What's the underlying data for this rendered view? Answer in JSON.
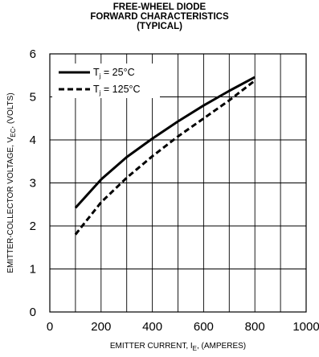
{
  "chart_data": {
    "type": "line",
    "title_lines": [
      "FREE-WHEEL DIODE",
      "FORWARD CHARACTERISTICS",
      "(TYPICAL)"
    ],
    "xlabel": {
      "main": "EMITTER CURRENT, I",
      "sub": "E",
      "rest": ", (AMPERES)"
    },
    "ylabel": {
      "main": "EMITTER-COLLECTOR VOLTAGE, V",
      "sub": "EC",
      "rest": ", (VOLTS)"
    },
    "xlim": [
      0,
      1000
    ],
    "ylim": [
      0,
      6
    ],
    "xticks": [
      "0",
      "200",
      "400",
      "600",
      "800",
      "1000"
    ],
    "yticks": [
      "0",
      "1",
      "2",
      "3",
      "4",
      "5",
      "6"
    ],
    "grid": true,
    "legend_position": "top-left",
    "series": [
      {
        "name": "T j = 25°C",
        "label_main": "T",
        "label_sub": "j",
        "label_rest": " = 25°C",
        "style": "solid",
        "color": "#000000",
        "x": [
          100,
          200,
          300,
          400,
          500,
          600,
          700,
          800
        ],
        "y": [
          2.42,
          3.08,
          3.6,
          4.03,
          4.43,
          4.8,
          5.14,
          5.46
        ]
      },
      {
        "name": "T j = 125°C",
        "label_main": "T",
        "label_sub": "j",
        "label_rest": " = 125°C",
        "style": "dashed",
        "color": "#000000",
        "x": [
          100,
          200,
          300,
          400,
          500,
          600,
          700,
          800
        ],
        "y": [
          1.8,
          2.55,
          3.12,
          3.62,
          4.08,
          4.5,
          4.92,
          5.38
        ]
      }
    ]
  }
}
